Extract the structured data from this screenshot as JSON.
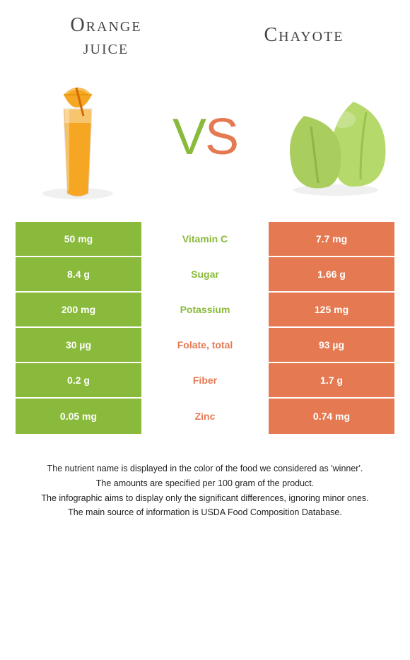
{
  "colors": {
    "green": "#8aba3b",
    "orange": "#e57a52",
    "background": "#ffffff",
    "text_dark": "#444444"
  },
  "header": {
    "left_title_line1": "Orange",
    "left_title_line2": "juice",
    "right_title": "Chayote",
    "vs_v": "V",
    "vs_s": "S"
  },
  "table": {
    "rows": [
      {
        "left": "50 mg",
        "mid": "Vitamin C",
        "right": "7.7 mg",
        "winner": "left"
      },
      {
        "left": "8.4 g",
        "mid": "Sugar",
        "right": "1.66 g",
        "winner": "left"
      },
      {
        "left": "200 mg",
        "mid": "Potassium",
        "right": "125 mg",
        "winner": "left"
      },
      {
        "left": "30 µg",
        "mid": "Folate, total",
        "right": "93 µg",
        "winner": "right"
      },
      {
        "left": "0.2 g",
        "mid": "Fiber",
        "right": "1.7 g",
        "winner": "right"
      },
      {
        "left": "0.05 mg",
        "mid": "Zinc",
        "right": "0.74 mg",
        "winner": "right"
      }
    ]
  },
  "notes": {
    "line1": "The nutrient name is displayed in the color of the food we considered as 'winner'.",
    "line2": "The amounts are specified per 100 gram of the product.",
    "line3": "The infographic aims to display only the significant differences, ignoring minor ones.",
    "line4": "The main source of information is USDA Food Composition Database."
  }
}
